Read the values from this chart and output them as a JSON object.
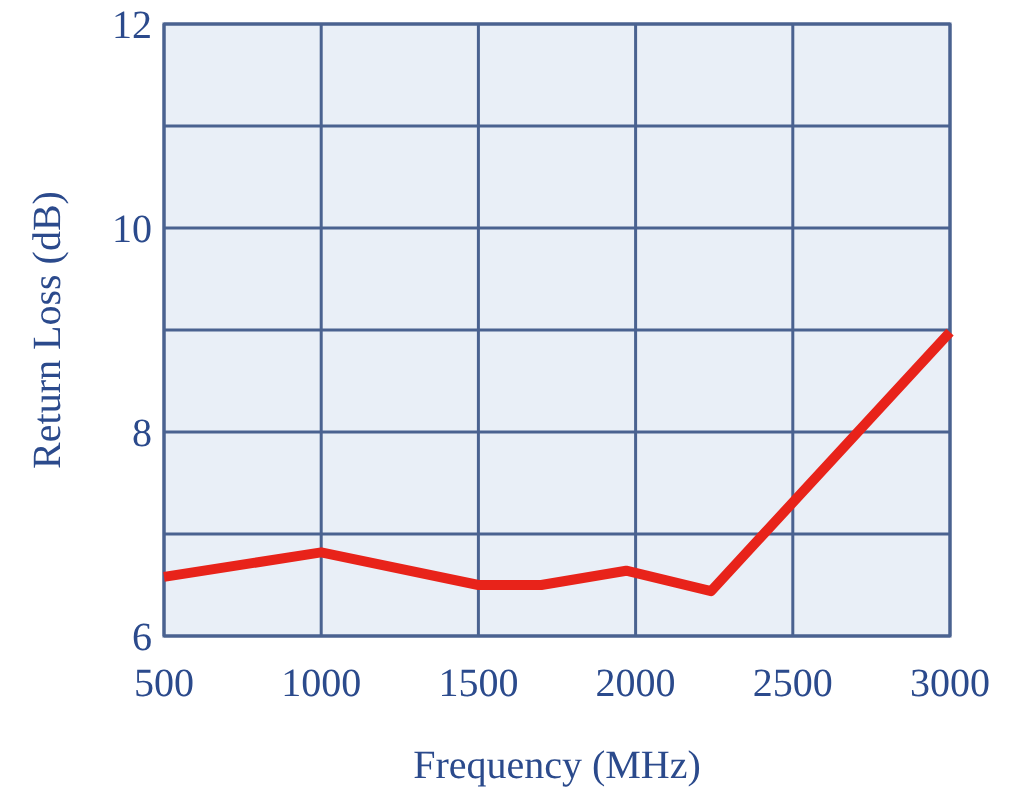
{
  "chart_data": {
    "type": "line",
    "xlabel": "Frequency (MHz)",
    "ylabel": "Return Loss (dB)",
    "x": [
      500,
      1000,
      1500,
      1700,
      1970,
      2240,
      3000
    ],
    "series": [
      {
        "color": "#e8231a",
        "values": [
          6.58,
          6.82,
          6.5,
          6.5,
          6.64,
          6.44,
          8.98
        ]
      }
    ],
    "xlim": [
      500,
      3000
    ],
    "ylim": [
      6,
      12
    ],
    "xticks": [
      500,
      1000,
      1500,
      2000,
      2500,
      3000
    ],
    "yticks": [
      6,
      {
        "value": 7,
        "label": null
      },
      8,
      {
        "value": 9,
        "label": null
      },
      10,
      {
        "value": 11,
        "label": null
      },
      12
    ],
    "grid": true,
    "marker": "none",
    "line_style": "solid"
  }
}
